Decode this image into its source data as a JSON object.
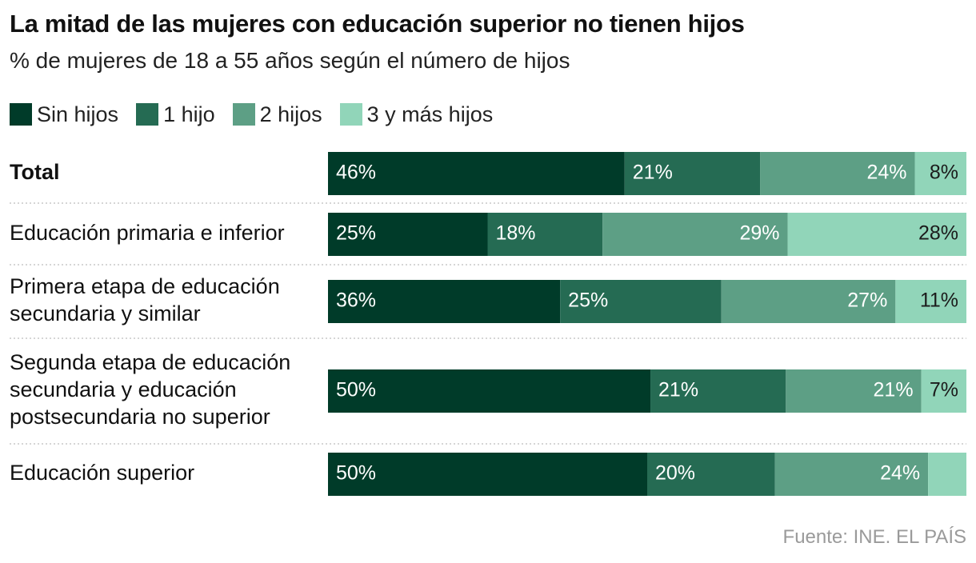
{
  "header": {
    "title": "La mitad de las mujeres con educación superior no tienen hijos",
    "subtitle": "% de mujeres de 18 a 55 años según el número de hijos"
  },
  "legend": [
    {
      "label": "Sin hijos",
      "color": "#003b29"
    },
    {
      "label": "1 hijo",
      "color": "#256b53"
    },
    {
      "label": "2 hijos",
      "color": "#5d9f85"
    },
    {
      "label": "3 y más hijos",
      "color": "#91d5b9"
    }
  ],
  "chart_data": {
    "type": "bar",
    "orientation": "horizontal",
    "stacked": true,
    "xlim": [
      0,
      100
    ],
    "categories": [
      "Total",
      "Educación primaria e inferior",
      "Primera etapa de educación secundaria y similar",
      "Segunda etapa de educación secundaria y educación postsecundaria no superior",
      "Educación superior"
    ],
    "series": [
      {
        "name": "Sin hijos",
        "values": [
          46,
          25,
          36,
          50,
          50
        ]
      },
      {
        "name": "1 hijo",
        "values": [
          21,
          18,
          25,
          21,
          20
        ]
      },
      {
        "name": "2 hijos",
        "values": [
          24,
          29,
          27,
          21,
          24
        ]
      },
      {
        "name": "3 y más hijos",
        "values": [
          8,
          28,
          11,
          7,
          6
        ]
      }
    ],
    "value_labels": [
      [
        "46%",
        "21%",
        "24%",
        "8%"
      ],
      [
        "25%",
        "18%",
        "29%",
        "28%"
      ],
      [
        "36%",
        "25%",
        "27%",
        "11%"
      ],
      [
        "50%",
        "21%",
        "21%",
        "7%"
      ],
      [
        "50%",
        "20%",
        "24%",
        ""
      ]
    ],
    "category_lines": [
      [
        "Total"
      ],
      [
        "Educación primaria e inferior"
      ],
      [
        "Primera etapa de educación",
        "secundaria y similar"
      ],
      [
        "Segunda etapa de educación",
        "secundaria y educación",
        "postsecundaria no superior"
      ],
      [
        "Educación superior"
      ]
    ],
    "grid": false,
    "legend_position": "top-left"
  },
  "footer": {
    "source": "Fuente: INE. EL PAÍS"
  }
}
